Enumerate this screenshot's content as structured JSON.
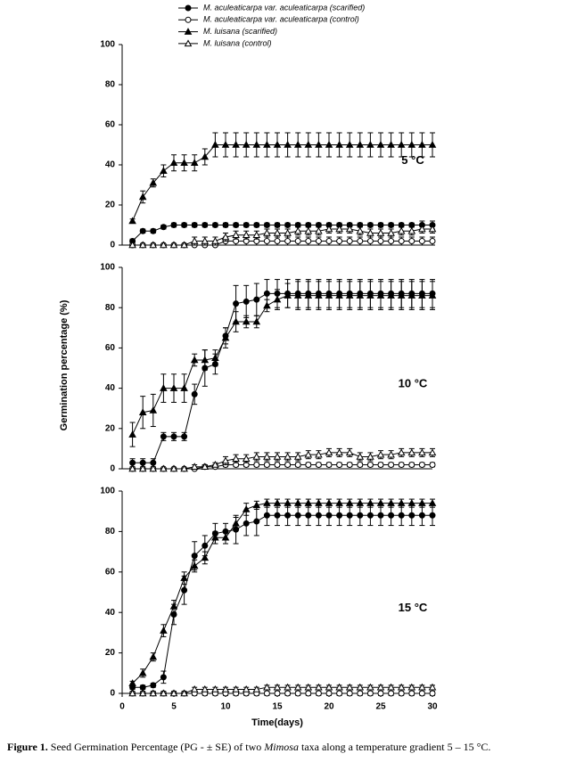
{
  "y_label": "Germination percentage (%)",
  "x_label": "Time(days)",
  "caption": {
    "label": "Figure 1.",
    "text_1": " Seed Germination Percentage (PG - ± SE) of two ",
    "taxon": "Mimosa",
    "text_2": " taxa along a temperature gradient 5 – 15 °C."
  },
  "chart_data": [
    {
      "type": "line",
      "annotation": "5 °C",
      "x": [
        1,
        2,
        3,
        4,
        5,
        6,
        7,
        8,
        9,
        10,
        11,
        12,
        13,
        14,
        15,
        16,
        17,
        18,
        19,
        20,
        21,
        22,
        23,
        24,
        25,
        26,
        27,
        28,
        29,
        30
      ],
      "xlim": [
        0,
        30
      ],
      "ylim": [
        0,
        100
      ],
      "yticks": [
        0,
        20,
        40,
        60,
        80,
        100
      ],
      "series": [
        {
          "name": "M. aculeaticarpa var. aculeaticarpa (scarified)",
          "marker": "circle",
          "filled": true,
          "values": [
            2,
            7,
            7,
            9,
            10,
            10,
            10,
            10,
            10,
            10,
            10,
            10,
            10,
            10,
            10,
            10,
            10,
            10,
            10,
            10,
            10,
            10,
            10,
            10,
            10,
            10,
            10,
            10,
            10,
            10
          ],
          "errors": [
            1,
            1,
            1,
            1,
            1,
            1,
            1,
            1,
            1,
            1,
            1,
            1,
            1,
            1,
            1,
            1,
            1,
            1,
            1,
            1,
            1,
            1,
            1,
            1,
            1,
            1,
            1,
            1,
            2,
            2
          ]
        },
        {
          "name": "M. aculeaticarpa var. aculeaticarpa (control)",
          "marker": "circle",
          "filled": false,
          "values": [
            0,
            0,
            0,
            0,
            0,
            0,
            0,
            0,
            0,
            2,
            2,
            2,
            2,
            2,
            2,
            2,
            2,
            2,
            2,
            2,
            2,
            2,
            2,
            2,
            2,
            2,
            2,
            2,
            2,
            2
          ],
          "errors": [
            0,
            0,
            0,
            0,
            0,
            0,
            0,
            0,
            0,
            2,
            2,
            2,
            2,
            2,
            2,
            2,
            2,
            2,
            2,
            2,
            2,
            2,
            2,
            2,
            2,
            2,
            2,
            2,
            2,
            2
          ]
        },
        {
          "name": "M. luisana (scarified)",
          "marker": "triangle",
          "filled": true,
          "values": [
            12,
            24,
            31,
            37,
            41,
            41,
            41,
            44,
            50,
            50,
            50,
            50,
            50,
            50,
            50,
            50,
            50,
            50,
            50,
            50,
            50,
            50,
            50,
            50,
            50,
            50,
            50,
            50,
            50,
            50
          ],
          "errors": [
            1,
            3,
            2,
            3,
            4,
            4,
            4,
            4,
            6,
            6,
            6,
            6,
            6,
            6,
            6,
            6,
            6,
            6,
            6,
            6,
            6,
            6,
            6,
            6,
            6,
            6,
            6,
            6,
            6,
            6
          ]
        },
        {
          "name": "M. luisana (control)",
          "marker": "triangle",
          "filled": false,
          "values": [
            0,
            0,
            0,
            0,
            0,
            0,
            2,
            2,
            2,
            4,
            5,
            5,
            5,
            6,
            6,
            6,
            7,
            7,
            7,
            8,
            8,
            8,
            7,
            6,
            6,
            6,
            7,
            7,
            8,
            8
          ],
          "errors": [
            0,
            0,
            0,
            0,
            0,
            0,
            2,
            2,
            2,
            2,
            2,
            2,
            2,
            2,
            2,
            2,
            2,
            2,
            2,
            2,
            2,
            2,
            2,
            2,
            2,
            2,
            2,
            2,
            2,
            2
          ]
        }
      ]
    },
    {
      "type": "line",
      "annotation": "10 °C",
      "x": [
        1,
        2,
        3,
        4,
        5,
        6,
        7,
        8,
        9,
        10,
        11,
        12,
        13,
        14,
        15,
        16,
        17,
        18,
        19,
        20,
        21,
        22,
        23,
        24,
        25,
        26,
        27,
        28,
        29,
        30
      ],
      "xlim": [
        0,
        30
      ],
      "ylim": [
        0,
        100
      ],
      "yticks": [
        0,
        20,
        40,
        60,
        80,
        100
      ],
      "series": [
        {
          "marker": "circle",
          "filled": true,
          "values": [
            3,
            3,
            3,
            16,
            16,
            16,
            37,
            50,
            52,
            66,
            82,
            83,
            84,
            87,
            87,
            87,
            87,
            87,
            87,
            87,
            87,
            87,
            87,
            87,
            87,
            87,
            87,
            87,
            87,
            87
          ],
          "errors": [
            2,
            2,
            2,
            2,
            2,
            2,
            5,
            9,
            5,
            4,
            9,
            8,
            8,
            7,
            7,
            7,
            7,
            7,
            7,
            7,
            7,
            7,
            7,
            7,
            7,
            7,
            7,
            7,
            7,
            7
          ]
        },
        {
          "marker": "circle",
          "filled": false,
          "values": [
            0,
            0,
            0,
            0,
            0,
            0,
            0,
            1,
            1,
            2,
            2,
            2,
            2,
            2,
            2,
            2,
            2,
            2,
            2,
            2,
            2,
            2,
            2,
            2,
            2,
            2,
            2,
            2,
            2,
            2
          ],
          "errors": [
            0,
            0,
            0,
            0,
            0,
            0,
            0,
            1,
            1,
            1,
            1,
            1,
            1,
            1,
            1,
            1,
            1,
            1,
            1,
            1,
            1,
            1,
            1,
            1,
            1,
            1,
            1,
            1,
            1,
            1
          ]
        },
        {
          "marker": "triangle",
          "filled": true,
          "values": [
            17,
            28,
            29,
            40,
            40,
            40,
            54,
            54,
            55,
            65,
            73,
            73,
            73,
            81,
            84,
            86,
            86,
            86,
            86,
            86,
            86,
            86,
            86,
            86,
            86,
            86,
            86,
            86,
            86,
            86
          ],
          "errors": [
            6,
            8,
            8,
            7,
            7,
            7,
            3,
            5,
            4,
            5,
            5,
            3,
            3,
            3,
            5,
            6,
            7,
            7,
            7,
            7,
            7,
            7,
            7,
            7,
            7,
            7,
            7,
            7,
            7,
            7
          ]
        },
        {
          "marker": "triangle",
          "filled": false,
          "values": [
            0,
            0,
            0,
            0,
            0,
            0,
            1,
            1,
            2,
            4,
            5,
            5,
            6,
            6,
            6,
            6,
            6,
            7,
            7,
            8,
            8,
            8,
            6,
            6,
            7,
            7,
            8,
            8,
            8,
            8
          ],
          "errors": [
            0,
            0,
            0,
            0,
            0,
            0,
            1,
            1,
            1,
            2,
            2,
            2,
            2,
            2,
            2,
            2,
            2,
            2,
            2,
            2,
            2,
            2,
            2,
            2,
            2,
            2,
            2,
            2,
            2,
            2
          ]
        }
      ]
    },
    {
      "type": "line",
      "annotation": "15 °C",
      "x": [
        1,
        2,
        3,
        4,
        5,
        6,
        7,
        8,
        9,
        10,
        11,
        12,
        13,
        14,
        15,
        16,
        17,
        18,
        19,
        20,
        21,
        22,
        23,
        24,
        25,
        26,
        27,
        28,
        29,
        30
      ],
      "xlim": [
        0,
        30
      ],
      "xticks": [
        0,
        5,
        10,
        15,
        20,
        25,
        30
      ],
      "ylim": [
        0,
        100
      ],
      "yticks": [
        0,
        20,
        40,
        60,
        80,
        100
      ],
      "series": [
        {
          "marker": "circle",
          "filled": true,
          "values": [
            3,
            3,
            4,
            8,
            39,
            51,
            68,
            73,
            79,
            80,
            81,
            84,
            85,
            88,
            88,
            88,
            88,
            88,
            88,
            88,
            88,
            88,
            88,
            88,
            88,
            88,
            88,
            88,
            88,
            88
          ],
          "errors": [
            1,
            1,
            1,
            3,
            5,
            7,
            7,
            5,
            5,
            4,
            7,
            6,
            7,
            5,
            5,
            5,
            5,
            5,
            5,
            5,
            5,
            5,
            5,
            5,
            5,
            5,
            5,
            5,
            5,
            5
          ]
        },
        {
          "marker": "circle",
          "filled": false,
          "values": [
            0,
            0,
            0,
            0,
            0,
            0,
            0,
            0,
            0,
            0,
            0,
            0,
            0,
            0,
            0,
            0,
            0,
            0,
            0,
            0,
            0,
            0,
            0,
            0,
            0,
            0,
            0,
            0,
            0,
            0
          ],
          "errors": [
            1,
            1,
            1,
            1,
            1,
            1,
            1,
            1,
            1,
            1,
            1,
            1,
            1,
            1,
            1,
            1,
            1,
            1,
            1,
            1,
            1,
            1,
            1,
            1,
            1,
            1,
            1,
            1,
            1,
            1
          ]
        },
        {
          "marker": "triangle",
          "filled": true,
          "values": [
            5,
            10,
            18,
            31,
            43,
            57,
            63,
            67,
            77,
            77,
            84,
            91,
            93,
            94,
            94,
            94,
            94,
            94,
            94,
            94,
            94,
            94,
            94,
            94,
            94,
            94,
            94,
            94,
            94,
            94
          ],
          "errors": [
            1,
            2,
            2,
            3,
            3,
            3,
            3,
            3,
            3,
            3,
            3,
            3,
            2,
            2,
            2,
            2,
            2,
            2,
            2,
            2,
            2,
            2,
            2,
            2,
            2,
            2,
            2,
            2,
            2,
            2
          ]
        },
        {
          "marker": "triangle",
          "filled": false,
          "values": [
            0,
            0,
            0,
            0,
            0,
            0,
            2,
            2,
            2,
            2,
            2,
            2,
            2,
            3,
            3,
            3,
            3,
            3,
            3,
            3,
            3,
            3,
            3,
            3,
            3,
            3,
            3,
            3,
            3,
            3
          ],
          "errors": [
            0,
            0,
            0,
            0,
            0,
            0,
            1,
            1,
            1,
            1,
            1,
            1,
            1,
            1,
            1,
            1,
            1,
            1,
            1,
            1,
            1,
            1,
            1,
            1,
            1,
            1,
            1,
            1,
            1,
            1
          ]
        }
      ]
    }
  ]
}
